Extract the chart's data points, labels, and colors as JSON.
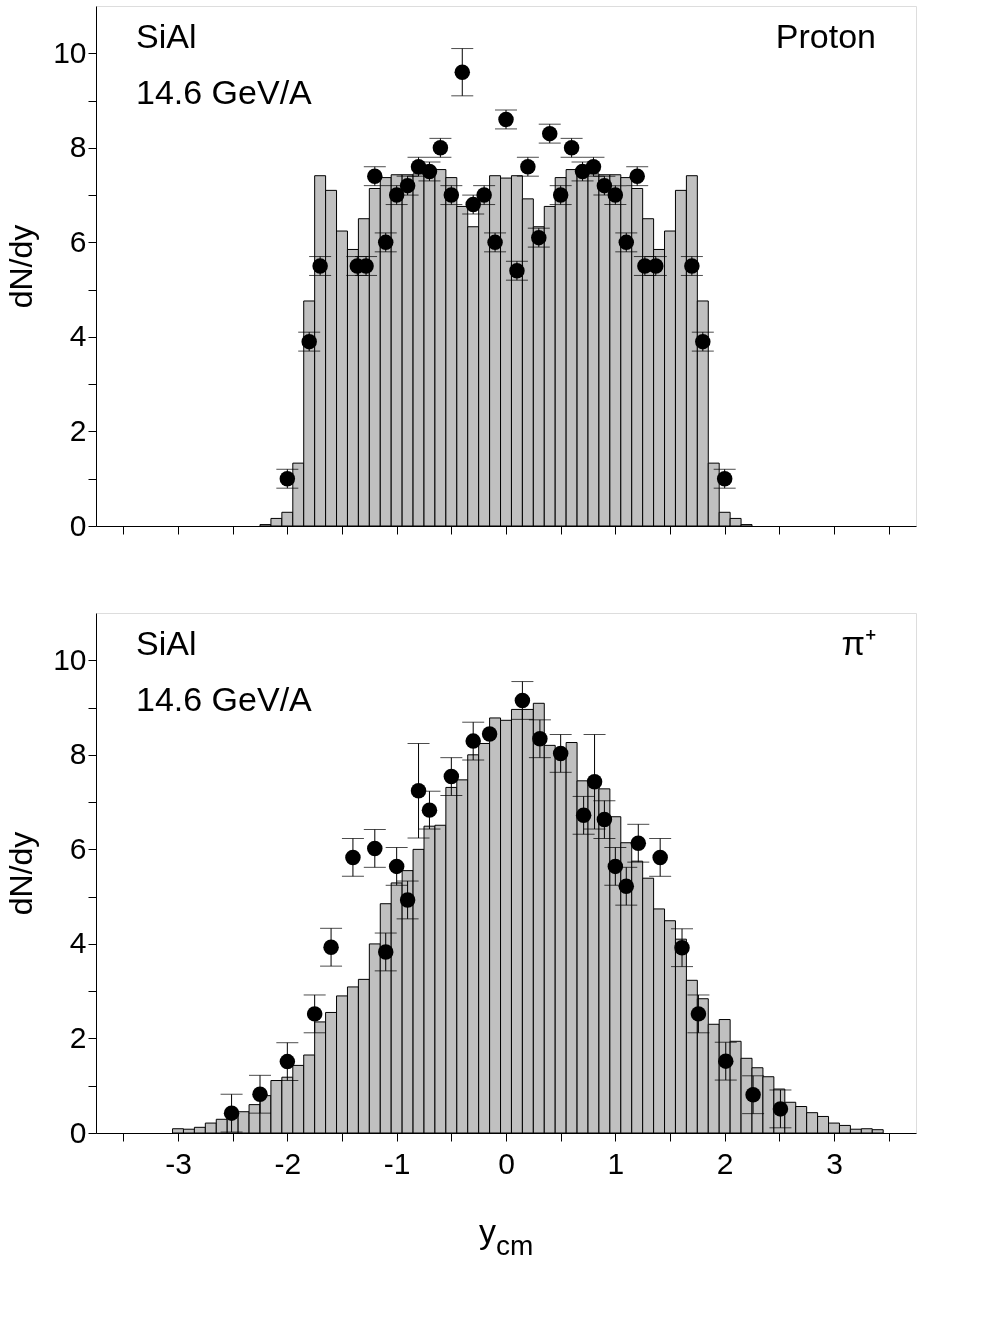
{
  "chart_data": [
    {
      "type": "bar",
      "ylabel": "dN/dy",
      "annotations": [
        "SiAl",
        "14.6 GeV/A",
        "Proton"
      ],
      "xlim": [
        -3.75,
        3.75
      ],
      "ylim": [
        0,
        11
      ],
      "xticks": [
        {
          "value": -3.5,
          "label": null
        },
        -3,
        {
          "value": -2.5,
          "label": null
        },
        -2,
        {
          "value": -1.5,
          "label": null
        },
        -1,
        {
          "value": -0.5,
          "label": null
        },
        0,
        {
          "value": 0.5,
          "label": null
        },
        1,
        {
          "value": 1.5,
          "label": null
        },
        2,
        {
          "value": 2.5,
          "label": null
        },
        3,
        {
          "value": 3.5,
          "label": null
        }
      ],
      "yticks": [
        0,
        {
          "value": 1,
          "label": null
        },
        2,
        {
          "value": 3,
          "label": null
        },
        4,
        {
          "value": 5,
          "label": null
        },
        6,
        {
          "value": 7,
          "label": null
        },
        8,
        {
          "value": 9,
          "label": null
        },
        10
      ],
      "tick_labels": "y",
      "grid": false,
      "marker": "circle",
      "series": [
        {
          "color": "#c0c0c0",
          "x": [
            -2.2,
            -2.1,
            -2.0,
            -1.9,
            -1.8,
            -1.7,
            -1.6,
            -1.5,
            -1.4,
            -1.3,
            -1.2,
            -1.1,
            -1.0,
            -0.9,
            -0.8,
            -0.7,
            -0.6,
            -0.5,
            -0.4,
            -0.3,
            -0.2,
            -0.1,
            0.0,
            0.1,
            0.2,
            0.3,
            0.4,
            0.5,
            0.6,
            0.7,
            0.8,
            0.9,
            1.0,
            1.1,
            1.2,
            1.3,
            1.4,
            1.5,
            1.6,
            1.7,
            1.8,
            1.9,
            2.0,
            2.1,
            2.2
          ],
          "values": [
            0.03,
            0.16,
            0.29,
            1.33,
            4.76,
            7.41,
            7.1,
            6.24,
            5.85,
            6.5,
            7.14,
            7.37,
            7.43,
            7.43,
            7.45,
            7.49,
            7.54,
            7.37,
            6.76,
            6.33,
            6.92,
            7.41,
            7.36,
            7.41,
            6.92,
            6.33,
            6.76,
            7.37,
            7.54,
            7.49,
            7.45,
            7.43,
            7.43,
            7.37,
            7.14,
            6.5,
            5.85,
            6.24,
            7.1,
            7.41,
            4.76,
            1.33,
            0.29,
            0.16,
            0.03
          ]
        },
        {
          "type": "scatter",
          "color": "#000000",
          "x": [
            -2.0,
            -1.8,
            -1.7,
            -1.36,
            -1.28,
            -1.2,
            -1.1,
            -1.0,
            -0.9,
            -0.8,
            -0.7,
            -0.6,
            -0.5,
            -0.4,
            -0.3,
            -0.2,
            -0.1,
            0.0,
            0.1,
            0.2,
            0.3,
            0.4,
            0.5,
            0.6,
            0.7,
            0.8,
            0.9,
            1.0,
            1.1,
            1.2,
            1.27,
            1.37,
            1.7,
            1.8,
            2.0
          ],
          "values": [
            1.0,
            3.9,
            5.5,
            5.5,
            5.5,
            7.4,
            6.0,
            7.0,
            7.2,
            7.6,
            7.5,
            8.0,
            7.0,
            9.6,
            6.8,
            7.0,
            6.0,
            8.6,
            5.4,
            7.6,
            6.1,
            8.3,
            7.0,
            8.0,
            7.5,
            7.6,
            7.2,
            7.0,
            6.0,
            7.4,
            5.5,
            5.5,
            5.5,
            3.9,
            1.0
          ],
          "errors": [
            0.2,
            0.2,
            0.2,
            0.2,
            0.2,
            0.2,
            0.2,
            0.2,
            0.2,
            0.2,
            0.2,
            0.2,
            0.2,
            0.5,
            0.2,
            0.2,
            0.2,
            0.2,
            0.2,
            0.2,
            0.2,
            0.2,
            0.2,
            0.2,
            0.2,
            0.2,
            0.2,
            0.2,
            0.2,
            0.2,
            0.2,
            0.2,
            0.2,
            0.2,
            0.2
          ]
        }
      ]
    },
    {
      "type": "bar",
      "xlabel": "y$_{cm}$",
      "ylabel": "dN/dy",
      "annotations": [
        "SiAl",
        "14.6 GeV/A",
        "π⁺"
      ],
      "xlim": [
        -3.75,
        3.75
      ],
      "ylim": [
        0,
        11
      ],
      "xticks": [
        {
          "value": -3.5,
          "label": null
        },
        -3,
        {
          "value": -2.5,
          "label": null
        },
        -2,
        {
          "value": -1.5,
          "label": null
        },
        -1,
        {
          "value": -0.5,
          "label": null
        },
        0,
        {
          "value": 0.5,
          "label": null
        },
        1,
        {
          "value": 1.5,
          "label": null
        },
        2,
        {
          "value": 2.5,
          "label": null
        },
        3,
        {
          "value": 3.5,
          "label": null
        }
      ],
      "yticks": [
        0,
        {
          "value": 1,
          "label": null
        },
        2,
        {
          "value": 3,
          "label": null
        },
        4,
        {
          "value": 5,
          "label": null
        },
        6,
        {
          "value": 7,
          "label": null
        },
        8,
        {
          "value": 9,
          "label": null
        },
        10
      ],
      "grid": false,
      "marker": "circle",
      "series": [
        {
          "color": "#c0c0c0",
          "x": [
            -3.0,
            -2.9,
            -2.8,
            -2.7,
            -2.6,
            -2.5,
            -2.4,
            -2.3,
            -2.2,
            -2.1,
            -2.0,
            -1.9,
            -1.8,
            -1.7,
            -1.6,
            -1.5,
            -1.4,
            -1.3,
            -1.2,
            -1.1,
            -1.0,
            -0.9,
            -0.8,
            -0.7,
            -0.6,
            -0.5,
            -0.4,
            -0.3,
            -0.2,
            -0.1,
            0.0,
            0.1,
            0.2,
            0.3,
            0.4,
            0.5,
            0.6,
            0.7,
            0.8,
            0.9,
            1.0,
            1.1,
            1.2,
            1.3,
            1.4,
            1.5,
            1.6,
            1.7,
            1.8,
            1.9,
            2.0,
            2.1,
            2.2,
            2.3,
            2.4,
            2.5,
            2.6,
            2.7,
            2.8,
            2.9,
            3.0,
            3.1,
            3.2,
            3.3,
            3.4
          ],
          "values": [
            0.09,
            0.08,
            0.12,
            0.21,
            0.29,
            0.37,
            0.45,
            0.6,
            0.79,
            1.11,
            1.18,
            1.43,
            1.65,
            2.35,
            2.55,
            2.9,
            3.09,
            3.25,
            4.0,
            4.85,
            5.29,
            5.55,
            6.0,
            6.49,
            6.51,
            7.31,
            7.47,
            8.0,
            8.24,
            8.78,
            8.73,
            8.96,
            8.96,
            9.09,
            8.2,
            8.0,
            8.26,
            7.45,
            7.36,
            7.28,
            6.69,
            6.14,
            5.75,
            5.39,
            4.74,
            4.49,
            4.1,
            3.23,
            2.84,
            2.3,
            2.4,
            1.94,
            1.58,
            1.38,
            1.19,
            0.93,
            0.65,
            0.56,
            0.43,
            0.35,
            0.21,
            0.16,
            0.08,
            0.09,
            0.07
          ]
        },
        {
          "type": "scatter",
          "color": "#000000",
          "x": [
            -2.51,
            -2.25,
            -2.0,
            -1.75,
            -1.6,
            -1.4,
            -1.2,
            -1.1,
            -1.0,
            -0.9,
            -0.8,
            -0.7,
            -0.5,
            -0.3,
            -0.15,
            0.15,
            0.31,
            0.5,
            0.71,
            0.81,
            0.9,
            1.0,
            1.1,
            1.21,
            1.41,
            1.61,
            1.76,
            2.01,
            2.26,
            2.51
          ],
          "values": [
            0.42,
            0.82,
            1.51,
            2.52,
            3.93,
            5.83,
            6.02,
            3.83,
            5.64,
            4.93,
            7.24,
            6.83,
            7.54,
            8.29,
            8.44,
            9.15,
            8.34,
            8.03,
            6.72,
            7.43,
            6.63,
            5.64,
            5.22,
            6.13,
            5.83,
            3.92,
            2.52,
            1.52,
            0.81,
            0.51
          ],
          "errors": [
            0.4,
            0.4,
            0.4,
            0.4,
            0.4,
            0.4,
            0.4,
            0.4,
            0.4,
            0.4,
            1.0,
            0.4,
            0.4,
            0.4,
            null,
            0.4,
            0.4,
            0.4,
            0.4,
            1.0,
            0.4,
            0.4,
            0.4,
            0.4,
            0.4,
            0.4,
            0.4,
            0.4,
            0.4,
            0.4
          ]
        }
      ]
    }
  ]
}
